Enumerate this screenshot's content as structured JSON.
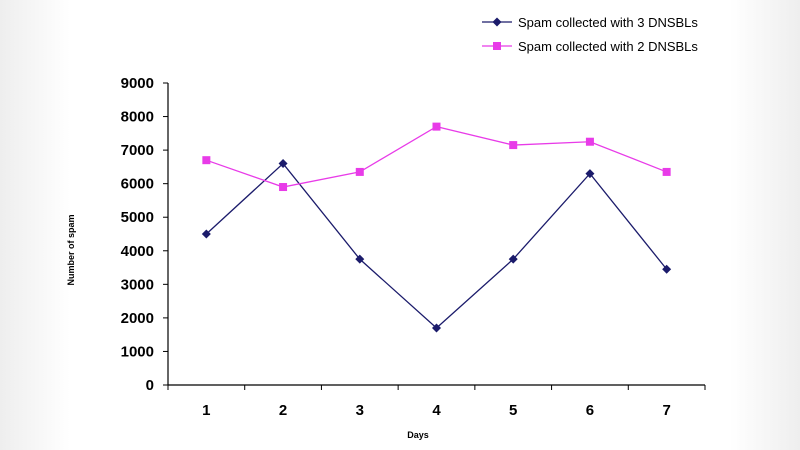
{
  "chart_data": {
    "type": "line",
    "title": "",
    "xlabel": "Days",
    "ylabel": "Number of spam",
    "x": [
      1,
      2,
      3,
      4,
      5,
      6,
      7
    ],
    "ylim": [
      0,
      9000
    ],
    "yticks": [
      0,
      1000,
      2000,
      3000,
      4000,
      5000,
      6000,
      7000,
      8000,
      9000
    ],
    "grid": false,
    "legend_position": "top-right",
    "series": [
      {
        "name": "Spam collected with 3 DNSBLs",
        "color": "#1b1b6b",
        "marker": "diamond",
        "values": [
          4500,
          6600,
          3750,
          1700,
          3750,
          6300,
          3450
        ]
      },
      {
        "name": "Spam collected with 2 DNSBLs",
        "color": "#e83be8",
        "marker": "square",
        "values": [
          6700,
          5900,
          6350,
          7700,
          7150,
          7250,
          6350
        ]
      }
    ]
  }
}
